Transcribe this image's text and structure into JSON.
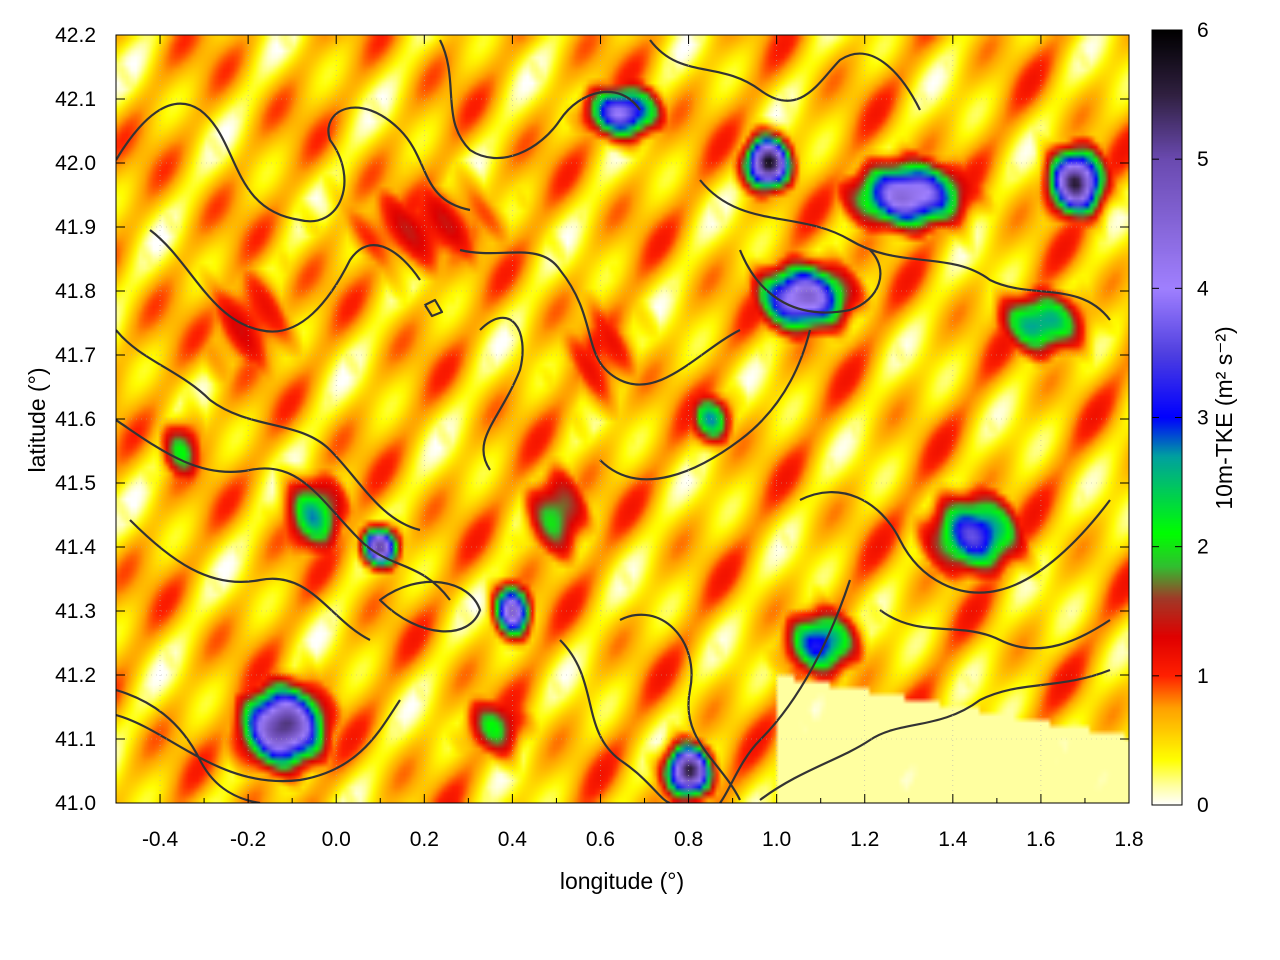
{
  "chart_data": {
    "type": "heatmap",
    "title": "",
    "xlabel": "longitude (°)",
    "ylabel": "latitude (°)",
    "xlim": [
      -0.5,
      1.8
    ],
    "ylim": [
      41.0,
      42.2
    ],
    "x_ticks": [
      "-0.4",
      "-0.2",
      "0.0",
      "0.2",
      "0.4",
      "0.6",
      "0.8",
      "1.0",
      "1.2",
      "1.4",
      "1.6",
      "1.8"
    ],
    "x_tick_values": [
      -0.4,
      -0.2,
      0.0,
      0.2,
      0.4,
      0.6,
      0.8,
      1.0,
      1.2,
      1.4,
      1.6,
      1.8
    ],
    "y_ticks": [
      "41.0",
      "41.1",
      "41.2",
      "41.3",
      "41.4",
      "41.5",
      "41.6",
      "41.7",
      "41.8",
      "41.9",
      "42.0",
      "42.1",
      "42.2"
    ],
    "y_tick_values": [
      41.0,
      41.1,
      41.2,
      41.3,
      41.4,
      41.5,
      41.6,
      41.7,
      41.8,
      41.9,
      42.0,
      42.1,
      42.2
    ],
    "grid": true,
    "colorbar": {
      "label": "10m-TKE (m² s⁻²)",
      "range": [
        0,
        6
      ],
      "ticks": [
        "0",
        "1",
        "2",
        "3",
        "4",
        "5",
        "6"
      ],
      "tick_values": [
        0,
        1,
        2,
        3,
        4,
        5,
        6
      ],
      "palette": [
        {
          "v": 0.0,
          "color": "#ffffff"
        },
        {
          "v": 0.15,
          "color": "#ffffa0"
        },
        {
          "v": 0.35,
          "color": "#ffff00"
        },
        {
          "v": 0.75,
          "color": "#ffa000"
        },
        {
          "v": 1.0,
          "color": "#ff2000"
        },
        {
          "v": 1.3,
          "color": "#e00000"
        },
        {
          "v": 1.6,
          "color": "#a03a28"
        },
        {
          "v": 1.85,
          "color": "#30c030"
        },
        {
          "v": 2.1,
          "color": "#00ff00"
        },
        {
          "v": 2.7,
          "color": "#00a0a0"
        },
        {
          "v": 3.0,
          "color": "#0000ff"
        },
        {
          "v": 3.5,
          "color": "#5040e0"
        },
        {
          "v": 4.0,
          "color": "#a080ff"
        },
        {
          "v": 5.0,
          "color": "#6a4ab0"
        },
        {
          "v": 5.5,
          "color": "#302040"
        },
        {
          "v": 6.0,
          "color": "#000000"
        }
      ]
    },
    "hotspots": [
      {
        "lon": -0.12,
        "lat": 41.12,
        "value": 5.4,
        "sx": 0.09,
        "sy": 0.06
      },
      {
        "lon": -0.05,
        "lat": 41.45,
        "value": 2.6,
        "sx": 0.07,
        "sy": 0.06
      },
      {
        "lon": 0.5,
        "lat": 41.45,
        "value": 2.0,
        "sx": 0.07,
        "sy": 0.07
      },
      {
        "lon": 0.36,
        "lat": 41.12,
        "value": 2.0,
        "sx": 0.07,
        "sy": 0.05
      },
      {
        "lon": 1.06,
        "lat": 41.79,
        "value": 4.6,
        "sx": 0.1,
        "sy": 0.05
      },
      {
        "lon": 0.98,
        "lat": 42.0,
        "value": 5.8,
        "sx": 0.05,
        "sy": 0.04
      },
      {
        "lon": 0.65,
        "lat": 42.08,
        "value": 4.0,
        "sx": 0.08,
        "sy": 0.04
      },
      {
        "lon": 1.3,
        "lat": 41.95,
        "value": 4.5,
        "sx": 0.12,
        "sy": 0.05
      },
      {
        "lon": 1.68,
        "lat": 41.97,
        "value": 5.5,
        "sx": 0.06,
        "sy": 0.05
      },
      {
        "lon": 1.6,
        "lat": 41.75,
        "value": 2.8,
        "sx": 0.1,
        "sy": 0.05
      },
      {
        "lon": 1.45,
        "lat": 41.42,
        "value": 3.5,
        "sx": 0.1,
        "sy": 0.06
      },
      {
        "lon": 0.8,
        "lat": 41.05,
        "value": 5.6,
        "sx": 0.05,
        "sy": 0.04
      },
      {
        "lon": 0.1,
        "lat": 41.4,
        "value": 5.0,
        "sx": 0.04,
        "sy": 0.03
      },
      {
        "lon": 0.4,
        "lat": 41.3,
        "value": 4.5,
        "sx": 0.04,
        "sy": 0.04
      },
      {
        "lon": 1.1,
        "lat": 41.25,
        "value": 3.2,
        "sx": 0.08,
        "sy": 0.05
      },
      {
        "lon": -0.35,
        "lat": 41.55,
        "value": 2.0,
        "sx": 0.05,
        "sy": 0.05
      },
      {
        "lon": 0.85,
        "lat": 41.6,
        "value": 2.6,
        "sx": 0.05,
        "sy": 0.04
      },
      {
        "lon": 0.2,
        "lat": 41.9,
        "value": 1.3,
        "sx": 0.2,
        "sy": 0.08
      },
      {
        "lon": -0.2,
        "lat": 41.75,
        "value": 1.2,
        "sx": 0.12,
        "sy": 0.1
      },
      {
        "lon": 0.6,
        "lat": 41.7,
        "value": 1.1,
        "sx": 0.1,
        "sy": 0.1
      }
    ],
    "lowlands": {
      "lon0": 1.0,
      "lat0": 41.0,
      "lon1": 1.8,
      "lat1": 41.2,
      "value": 0.15
    }
  }
}
